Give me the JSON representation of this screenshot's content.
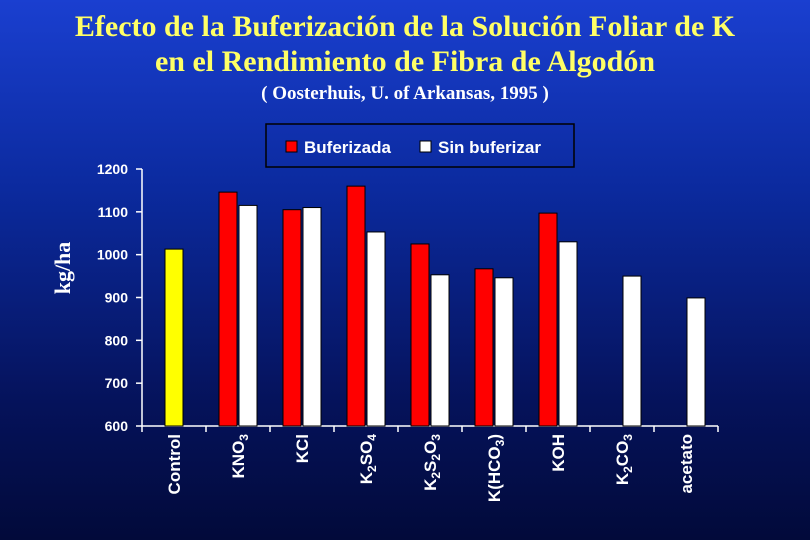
{
  "title_line1": "Efecto de la Buferización de la Solución Foliar de K",
  "title_line2": "en el Rendimiento de Fibra de Algodón",
  "subtitle": "( Oosterhuis, U. of Arkansas, 1995 )",
  "chart_data": {
    "type": "bar",
    "ylabel": "kg/ha",
    "ylim": [
      600,
      1200
    ],
    "yticks": [
      600,
      700,
      800,
      900,
      1000,
      1100,
      1200
    ],
    "grid": false,
    "legend_position": "top",
    "categories": [
      {
        "parts": [
          {
            "t": "Control"
          }
        ]
      },
      {
        "parts": [
          {
            "t": "KNO"
          },
          {
            "t": "3",
            "sub": true
          }
        ]
      },
      {
        "parts": [
          {
            "t": "KCl"
          }
        ]
      },
      {
        "parts": [
          {
            "t": "K"
          },
          {
            "t": "2",
            "sub": true
          },
          {
            "t": "SO"
          },
          {
            "t": "4",
            "sub": true
          }
        ]
      },
      {
        "parts": [
          {
            "t": "K"
          },
          {
            "t": "2",
            "sub": true
          },
          {
            "t": "S"
          },
          {
            "t": "2",
            "sub": true
          },
          {
            "t": "O"
          },
          {
            "t": "3",
            "sub": true
          }
        ]
      },
      {
        "parts": [
          {
            "t": "K(HCO"
          },
          {
            "t": "3",
            "sub": true
          },
          {
            "t": ")"
          }
        ]
      },
      {
        "parts": [
          {
            "t": "KOH"
          }
        ]
      },
      {
        "parts": [
          {
            "t": "K"
          },
          {
            "t": "2",
            "sub": true
          },
          {
            "t": "CO"
          },
          {
            "t": "3",
            "sub": true
          }
        ]
      },
      {
        "parts": [
          {
            "t": "acetato"
          }
        ]
      }
    ],
    "control_value": 1013,
    "control_color": "#ffff00",
    "series": [
      {
        "name": "Buferizada",
        "color": "#ff0000",
        "values": [
          null,
          1146,
          1105,
          1160,
          1025,
          967,
          1097,
          null,
          null
        ]
      },
      {
        "name": "Sin buferizar",
        "color": "#ffffff",
        "values": [
          null,
          1115,
          1110,
          1053,
          953,
          946,
          1030,
          950,
          899
        ]
      }
    ]
  }
}
